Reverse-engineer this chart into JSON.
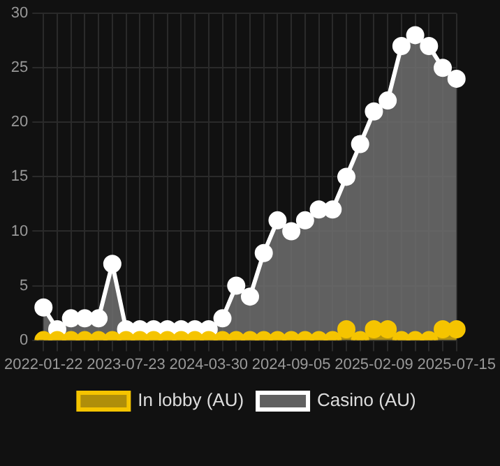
{
  "chart_data": {
    "type": "area",
    "categories": [
      "2022-01-22",
      null,
      null,
      null,
      null,
      null,
      "2023-07-23",
      null,
      null,
      null,
      null,
      null,
      "2024-03-30",
      null,
      null,
      null,
      null,
      null,
      "2024-09-05",
      null,
      null,
      null,
      null,
      null,
      "2025-02-09",
      null,
      null,
      null,
      null,
      null,
      "2025-07-15"
    ],
    "series": [
      {
        "name": "In lobby (AU)",
        "color": "#f5c400",
        "values": [
          0,
          0,
          0,
          0,
          0,
          0,
          0,
          0,
          0,
          0,
          0,
          0,
          0,
          0,
          0,
          0,
          0,
          0,
          0,
          0,
          0,
          0,
          1,
          0,
          1,
          1,
          0,
          0,
          0,
          1,
          1
        ]
      },
      {
        "name": "Casino (AU)",
        "color": "#ffffff",
        "values": [
          3,
          1,
          2,
          2,
          2,
          7,
          1,
          1,
          1,
          1,
          1,
          1,
          1,
          2,
          5,
          4,
          8,
          11,
          10,
          11,
          12,
          12,
          15,
          18,
          21,
          22,
          27,
          28,
          27,
          25,
          24
        ]
      }
    ],
    "ylim": [
      0,
      30
    ],
    "yticks": [
      0,
      5,
      10,
      15,
      20,
      25,
      30
    ],
    "grid": true,
    "legend": "bottom",
    "marker": "circle"
  }
}
